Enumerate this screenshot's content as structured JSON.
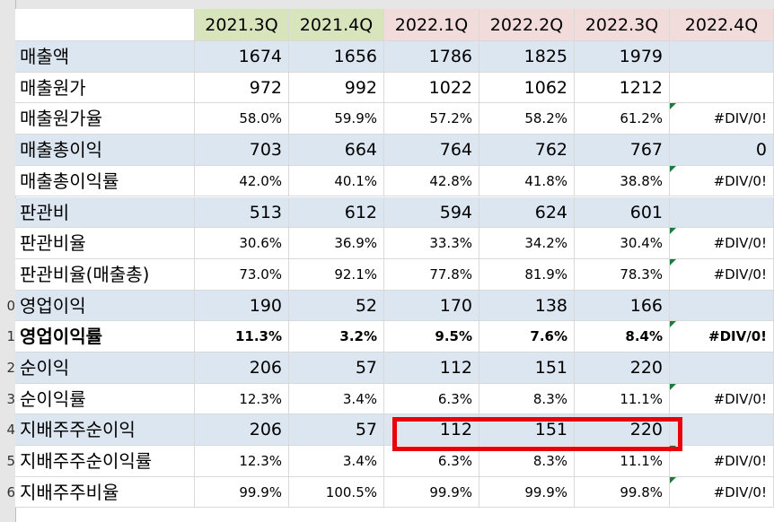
{
  "colors": {
    "band": "#dce6f1",
    "white": "#ffffff",
    "hdr_2021": "#d8e4bc",
    "hdr_2022": "#f2dcdb",
    "hdr_empty": "#ffffff",
    "highlight_box": "#e8000b",
    "error_indicator": "#1e7b3c"
  },
  "row_numbers": [
    "",
    "",
    "",
    "",
    "",
    "",
    "",
    "",
    "0",
    "1",
    "2",
    "3",
    "4",
    "5",
    "6"
  ],
  "headers": [
    "",
    "2021.3Q",
    "2021.4Q",
    "2022.1Q",
    "2022.2Q",
    "2022.3Q",
    "2022.4Q"
  ],
  "header_style": [
    "empty",
    "2021",
    "2021",
    "2022",
    "2022",
    "2022",
    "2022"
  ],
  "rows": [
    {
      "label": "매출액",
      "values": [
        "1674",
        "1656",
        "1786",
        "1825",
        "1979",
        ""
      ],
      "size": "big",
      "band": true
    },
    {
      "label": "매출원가",
      "values": [
        "972",
        "992",
        "1022",
        "1062",
        "1212",
        ""
      ],
      "size": "big",
      "band": false
    },
    {
      "label": "매출원가율",
      "values": [
        "58.0%",
        "59.9%",
        "57.2%",
        "58.2%",
        "61.2%",
        "#DIV/0!"
      ],
      "size": "small",
      "band": false,
      "tri": true
    },
    {
      "label": "매출총이익",
      "values": [
        "703",
        "664",
        "764",
        "762",
        "767",
        "0"
      ],
      "size": "big",
      "band": true
    },
    {
      "label": "매출총이익률",
      "values": [
        "42.0%",
        "40.1%",
        "42.8%",
        "41.8%",
        "38.8%",
        "#DIV/0!"
      ],
      "size": "small",
      "band": false,
      "tri": true
    },
    {
      "label": "판관비",
      "values": [
        "513",
        "612",
        "594",
        "624",
        "601",
        ""
      ],
      "size": "big",
      "band": true
    },
    {
      "label": "판관비율",
      "values": [
        "30.6%",
        "36.9%",
        "33.3%",
        "34.2%",
        "30.4%",
        "#DIV/0!"
      ],
      "size": "small",
      "band": false,
      "tri": true
    },
    {
      "label": "판관비율(매출총)",
      "values": [
        "73.0%",
        "92.1%",
        "77.8%",
        "81.9%",
        "78.3%",
        "#DIV/0!"
      ],
      "size": "small",
      "band": false,
      "tri": true
    },
    {
      "label": "영업이익",
      "values": [
        "190",
        "52",
        "170",
        "138",
        "166",
        ""
      ],
      "size": "big",
      "band": true
    },
    {
      "label": "영업이익률",
      "values": [
        "11.3%",
        "3.2%",
        "9.5%",
        "7.6%",
        "8.4%",
        "#DIV/0!"
      ],
      "size": "small",
      "band": false,
      "tri": true,
      "bold": true
    },
    {
      "label": "순이익",
      "values": [
        "206",
        "57",
        "112",
        "151",
        "220",
        ""
      ],
      "size": "big",
      "band": true
    },
    {
      "label": "순이익률",
      "values": [
        "12.3%",
        "3.4%",
        "6.3%",
        "8.3%",
        "11.1%",
        "#DIV/0!"
      ],
      "size": "small",
      "band": false,
      "tri": true
    },
    {
      "label": "지배주주순이익",
      "values": [
        "206",
        "57",
        "112",
        "151",
        "220",
        ""
      ],
      "size": "big",
      "band": true
    },
    {
      "label": "지배주주순이익률",
      "values": [
        "12.3%",
        "3.4%",
        "6.3%",
        "8.3%",
        "11.1%",
        "#DIV/0!"
      ],
      "size": "small",
      "band": false,
      "tri": true
    },
    {
      "label": "지배주주비율",
      "values": [
        "99.9%",
        "100.5%",
        "99.9%",
        "99.9%",
        "99.8%",
        "#DIV/0!"
      ],
      "size": "small",
      "band": false,
      "tri": true
    }
  ]
}
